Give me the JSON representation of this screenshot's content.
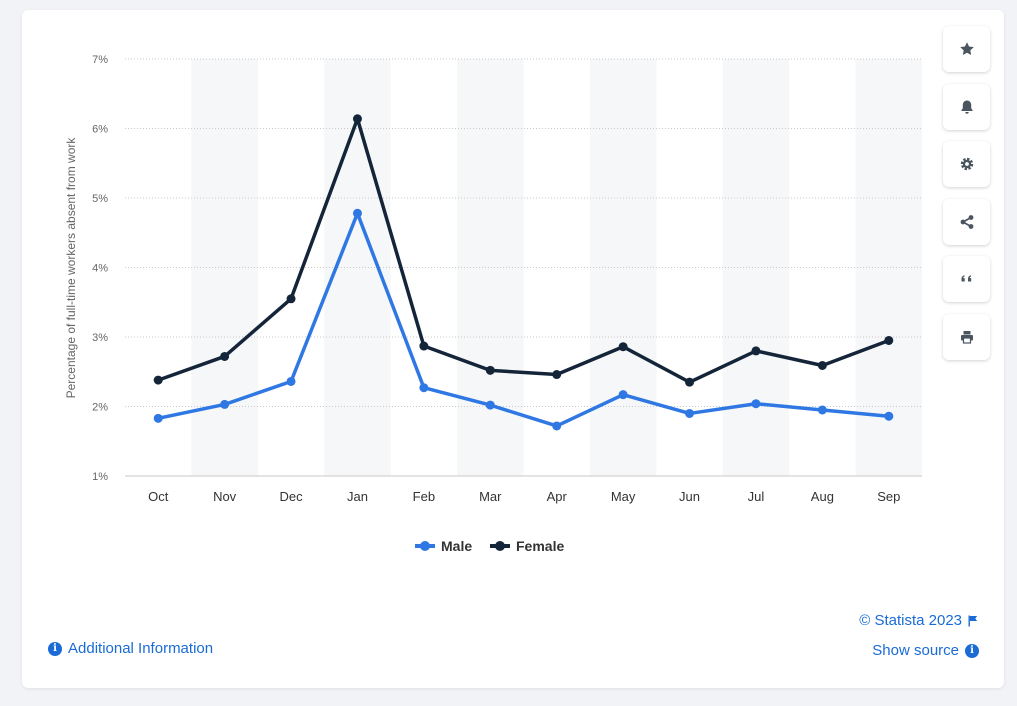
{
  "chart_data": {
    "type": "line",
    "categories": [
      "Oct",
      "Nov",
      "Dec",
      "Jan",
      "Feb",
      "Mar",
      "Apr",
      "May",
      "Jun",
      "Jul",
      "Aug",
      "Sep"
    ],
    "series": [
      {
        "name": "Male",
        "color": "#2f78e4",
        "values": [
          1.83,
          2.03,
          2.36,
          4.78,
          2.27,
          2.02,
          1.72,
          2.17,
          1.9,
          2.04,
          1.95,
          1.86
        ]
      },
      {
        "name": "Female",
        "color": "#14253a",
        "values": [
          2.38,
          2.72,
          3.55,
          6.14,
          2.87,
          2.52,
          2.46,
          2.86,
          2.35,
          2.8,
          2.59,
          2.95
        ]
      }
    ],
    "ylabel": "Percentage of full-time workers absent from work",
    "xlabel": "",
    "ylim": [
      1,
      7
    ],
    "yticks": [
      "1%",
      "2%",
      "3%",
      "4%",
      "5%",
      "6%",
      "7%"
    ],
    "grid": true,
    "legend_position": "bottom-center"
  },
  "sidebar": {
    "buttons": [
      {
        "name": "star-icon"
      },
      {
        "name": "bell-icon"
      },
      {
        "name": "gear-icon"
      },
      {
        "name": "share-icon"
      },
      {
        "name": "quote-icon"
      },
      {
        "name": "print-icon"
      }
    ]
  },
  "footer": {
    "copyright": "© Statista 2023",
    "additional_info": "Additional Information",
    "show_source": "Show source"
  },
  "colors": {
    "accent": "#1a6bd6",
    "icon": "#4a5560"
  }
}
